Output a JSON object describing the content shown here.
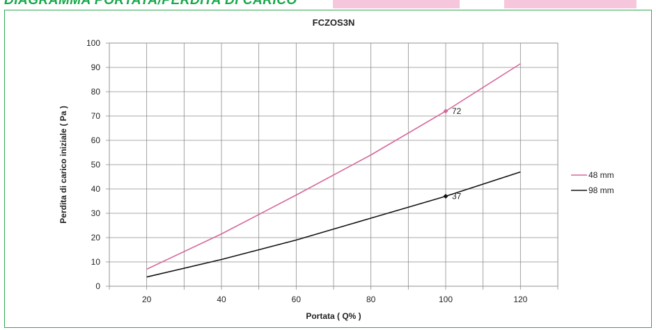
{
  "header": {
    "title": "DIAGRAMMA PORTATA/PERDITA DI CARICO"
  },
  "colors": {
    "frame": "#2fa84f",
    "header": "#19a84b",
    "pink_tab": "#f6c6dd"
  },
  "chart_data": {
    "type": "line",
    "title": "FCZOS3N",
    "xlabel": "Portata ( Q% )",
    "ylabel": "Perdita di carico iniziale ( Pa )",
    "xlim": [
      10,
      130
    ],
    "ylim": [
      0,
      100
    ],
    "xticks": [
      20,
      40,
      60,
      80,
      100,
      120
    ],
    "yticks": [
      0,
      10,
      20,
      30,
      40,
      50,
      60,
      70,
      80,
      90,
      100
    ],
    "grid": true,
    "legend": "right",
    "series": [
      {
        "name": "48 mm",
        "color": "#d6679a",
        "x": [
          20,
          40,
          60,
          80,
          100,
          120
        ],
        "y": [
          7,
          21.5,
          37.5,
          54,
          72,
          91.5
        ],
        "marker_x": 100,
        "marker_label": "72"
      },
      {
        "name": "98 mm",
        "color": "#111111",
        "x": [
          20,
          40,
          60,
          80,
          100,
          120
        ],
        "y": [
          3.8,
          11,
          19,
          28,
          37,
          47
        ],
        "marker_x": 100,
        "marker_label": "37"
      }
    ]
  }
}
